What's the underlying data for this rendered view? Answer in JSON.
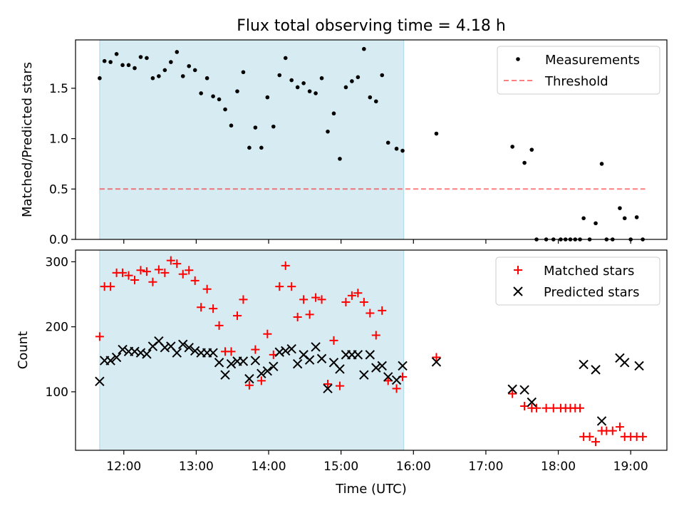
{
  "title": "Flux total observing time = 4.18 h",
  "xlabel": "Time (UTC)",
  "x_ticks": [
    "12:00",
    "13:00",
    "14:00",
    "15:00",
    "16:00",
    "17:00",
    "18:00",
    "19:00"
  ],
  "colors": {
    "shade": "#add8e6",
    "measurement": "#000000",
    "threshold": "#ff0000",
    "matched": "#ff0000",
    "predicted": "#000000"
  },
  "chart_data": [
    {
      "type": "scatter",
      "ylabel": "Matched/Predicted stars",
      "xlim": [
        "11:20",
        "19:30"
      ],
      "ylim": [
        0,
        1.98
      ],
      "y_ticks": [
        "0.0",
        "0.5",
        "1.0",
        "1.5"
      ],
      "grid": false,
      "legend_placement": "top-right",
      "shaded_interval": [
        "11:40",
        "15:52"
      ],
      "series": [
        {
          "name": "Measurements",
          "marker": "dot",
          "points": [
            [
              "11:40",
              1.6
            ],
            [
              "11:44",
              1.77
            ],
            [
              "11:49",
              1.76
            ],
            [
              "11:54",
              1.84
            ],
            [
              "11:59",
              1.73
            ],
            [
              "12:04",
              1.73
            ],
            [
              "12:09",
              1.7
            ],
            [
              "12:14",
              1.81
            ],
            [
              "12:19",
              1.8
            ],
            [
              "12:24",
              1.6
            ],
            [
              "12:29",
              1.62
            ],
            [
              "12:34",
              1.68
            ],
            [
              "12:39",
              1.76
            ],
            [
              "12:44",
              1.86
            ],
            [
              "12:49",
              1.62
            ],
            [
              "12:54",
              1.72
            ],
            [
              "12:59",
              1.68
            ],
            [
              "13:04",
              1.45
            ],
            [
              "13:09",
              1.6
            ],
            [
              "13:14",
              1.42
            ],
            [
              "13:19",
              1.39
            ],
            [
              "13:24",
              1.29
            ],
            [
              "13:29",
              1.13
            ],
            [
              "13:34",
              1.47
            ],
            [
              "13:39",
              1.66
            ],
            [
              "13:44",
              0.91
            ],
            [
              "13:49",
              1.11
            ],
            [
              "13:54",
              0.91
            ],
            [
              "13:59",
              1.41
            ],
            [
              "14:04",
              1.12
            ],
            [
              "14:09",
              1.63
            ],
            [
              "14:14",
              1.8
            ],
            [
              "14:19",
              1.58
            ],
            [
              "14:24",
              1.51
            ],
            [
              "14:29",
              1.55
            ],
            [
              "14:34",
              1.47
            ],
            [
              "14:39",
              1.45
            ],
            [
              "14:44",
              1.6
            ],
            [
              "14:49",
              1.07
            ],
            [
              "14:54",
              1.25
            ],
            [
              "14:59",
              0.8
            ],
            [
              "15:04",
              1.51
            ],
            [
              "15:09",
              1.57
            ],
            [
              "15:14",
              1.61
            ],
            [
              "15:19",
              1.89
            ],
            [
              "15:24",
              1.41
            ],
            [
              "15:29",
              1.37
            ],
            [
              "15:34",
              1.63
            ],
            [
              "15:39",
              0.96
            ],
            [
              "15:46",
              0.9
            ],
            [
              "15:51",
              0.88
            ],
            [
              "16:19",
              1.05
            ],
            [
              "17:22",
              0.92
            ],
            [
              "17:32",
              0.76
            ],
            [
              "17:38",
              0.89
            ],
            [
              "17:42",
              0.0
            ],
            [
              "17:50",
              0.0
            ],
            [
              "17:56",
              0.0
            ],
            [
              "18:02",
              0.0
            ],
            [
              "18:06",
              0.0
            ],
            [
              "18:10",
              0.0
            ],
            [
              "18:14",
              0.0
            ],
            [
              "18:18",
              0.0
            ],
            [
              "18:21",
              0.21
            ],
            [
              "18:26",
              0.0
            ],
            [
              "18:31",
              0.16
            ],
            [
              "18:36",
              0.75
            ],
            [
              "18:40",
              0.0
            ],
            [
              "18:45",
              0.0
            ],
            [
              "18:51",
              0.31
            ],
            [
              "18:55",
              0.21
            ],
            [
              "19:00",
              0.0
            ],
            [
              "19:05",
              0.22
            ],
            [
              "19:10",
              0.0
            ]
          ]
        },
        {
          "name": "Threshold",
          "line": "dashed",
          "points": [
            [
              "11:40",
              0.5
            ],
            [
              "19:12",
              0.5
            ]
          ]
        }
      ]
    },
    {
      "type": "scatter",
      "ylabel": "Count",
      "xlim": [
        "11:20",
        "19:30"
      ],
      "ylim": [
        10,
        318
      ],
      "y_ticks": [
        "100",
        "200",
        "300"
      ],
      "grid": false,
      "legend_placement": "top-right",
      "shaded_interval": [
        "11:40",
        "15:52"
      ],
      "series": [
        {
          "name": "Matched stars",
          "marker": "plus",
          "points": [
            [
              "11:40",
              185
            ],
            [
              "11:44",
              262
            ],
            [
              "11:49",
              262
            ],
            [
              "11:54",
              283
            ],
            [
              "11:59",
              283
            ],
            [
              "12:04",
              279
            ],
            [
              "12:09",
              272
            ],
            [
              "12:14",
              287
            ],
            [
              "12:19",
              285
            ],
            [
              "12:24",
              269
            ],
            [
              "12:29",
              288
            ],
            [
              "12:34",
              283
            ],
            [
              "12:39",
              302
            ],
            [
              "12:44",
              297
            ],
            [
              "12:49",
              281
            ],
            [
              "12:54",
              287
            ],
            [
              "12:59",
              271
            ],
            [
              "13:04",
              230
            ],
            [
              "13:09",
              258
            ],
            [
              "13:14",
              228
            ],
            [
              "13:19",
              202
            ],
            [
              "13:24",
              162
            ],
            [
              "13:29",
              162
            ],
            [
              "13:34",
              217
            ],
            [
              "13:39",
              242
            ],
            [
              "13:44",
              110
            ],
            [
              "13:49",
              165
            ],
            [
              "13:54",
              117
            ],
            [
              "13:59",
              189
            ],
            [
              "14:04",
              157
            ],
            [
              "14:09",
              262
            ],
            [
              "14:14",
              294
            ],
            [
              "14:19",
              262
            ],
            [
              "14:24",
              215
            ],
            [
              "14:29",
              242
            ],
            [
              "14:34",
              219
            ],
            [
              "14:39",
              245
            ],
            [
              "14:44",
              242
            ],
            [
              "14:49",
              112
            ],
            [
              "14:54",
              179
            ],
            [
              "14:59",
              109
            ],
            [
              "15:04",
              238
            ],
            [
              "15:09",
              248
            ],
            [
              "15:14",
              252
            ],
            [
              "15:19",
              238
            ],
            [
              "15:24",
              221
            ],
            [
              "15:29",
              187
            ],
            [
              "15:34",
              225
            ],
            [
              "15:39",
              117
            ],
            [
              "15:46",
              105
            ],
            [
              "15:51",
              123
            ],
            [
              "16:19",
              153
            ],
            [
              "17:22",
              97
            ],
            [
              "17:32",
              78
            ],
            [
              "17:38",
              75
            ],
            [
              "17:42",
              75
            ],
            [
              "17:50",
              75
            ],
            [
              "17:56",
              75
            ],
            [
              "18:02",
              75
            ],
            [
              "18:06",
              75
            ],
            [
              "18:10",
              75
            ],
            [
              "18:14",
              75
            ],
            [
              "18:18",
              75
            ],
            [
              "18:21",
              31
            ],
            [
              "18:26",
              31
            ],
            [
              "18:31",
              23
            ],
            [
              "18:36",
              40
            ],
            [
              "18:40",
              40
            ],
            [
              "18:45",
              40
            ],
            [
              "18:51",
              46
            ],
            [
              "18:55",
              31
            ],
            [
              "19:00",
              31
            ],
            [
              "19:05",
              31
            ],
            [
              "19:10",
              31
            ]
          ]
        },
        {
          "name": "Predicted stars",
          "marker": "x",
          "points": [
            [
              "11:40",
              116
            ],
            [
              "11:44",
              148
            ],
            [
              "11:49",
              148
            ],
            [
              "11:54",
              153
            ],
            [
              "11:59",
              165
            ],
            [
              "12:04",
              162
            ],
            [
              "12:09",
              162
            ],
            [
              "12:14",
              160
            ],
            [
              "12:19",
              158
            ],
            [
              "12:24",
              170
            ],
            [
              "12:29",
              178
            ],
            [
              "12:34",
              168
            ],
            [
              "12:39",
              170
            ],
            [
              "12:44",
              160
            ],
            [
              "12:49",
              173
            ],
            [
              "12:54",
              168
            ],
            [
              "12:59",
              163
            ],
            [
              "13:04",
              160
            ],
            [
              "13:09",
              160
            ],
            [
              "13:14",
              160
            ],
            [
              "13:19",
              145
            ],
            [
              "13:24",
              126
            ],
            [
              "13:29",
              143
            ],
            [
              "13:34",
              147
            ],
            [
              "13:39",
              147
            ],
            [
              "13:44",
              120
            ],
            [
              "13:49",
              148
            ],
            [
              "13:54",
              128
            ],
            [
              "13:59",
              132
            ],
            [
              "14:04",
              139
            ],
            [
              "14:09",
              161
            ],
            [
              "14:14",
              163
            ],
            [
              "14:19",
              166
            ],
            [
              "14:24",
              143
            ],
            [
              "14:29",
              157
            ],
            [
              "14:34",
              149
            ],
            [
              "14:39",
              169
            ],
            [
              "14:44",
              151
            ],
            [
              "14:49",
              105
            ],
            [
              "14:54",
              145
            ],
            [
              "14:59",
              135
            ],
            [
              "15:04",
              157
            ],
            [
              "15:09",
              157
            ],
            [
              "15:14",
              157
            ],
            [
              "15:19",
              126
            ],
            [
              "15:24",
              157
            ],
            [
              "15:29",
              137
            ],
            [
              "15:34",
              140
            ],
            [
              "15:39",
              123
            ],
            [
              "15:46",
              118
            ],
            [
              "15:51",
              140
            ],
            [
              "16:19",
              146
            ],
            [
              "17:22",
              104
            ],
            [
              "17:32",
              103
            ],
            [
              "17:38",
              84
            ],
            [
              "18:21",
              142
            ],
            [
              "18:31",
              134
            ],
            [
              "18:36",
              55
            ],
            [
              "18:51",
              152
            ],
            [
              "18:55",
              145
            ],
            [
              "19:07",
              140
            ]
          ]
        }
      ]
    }
  ]
}
